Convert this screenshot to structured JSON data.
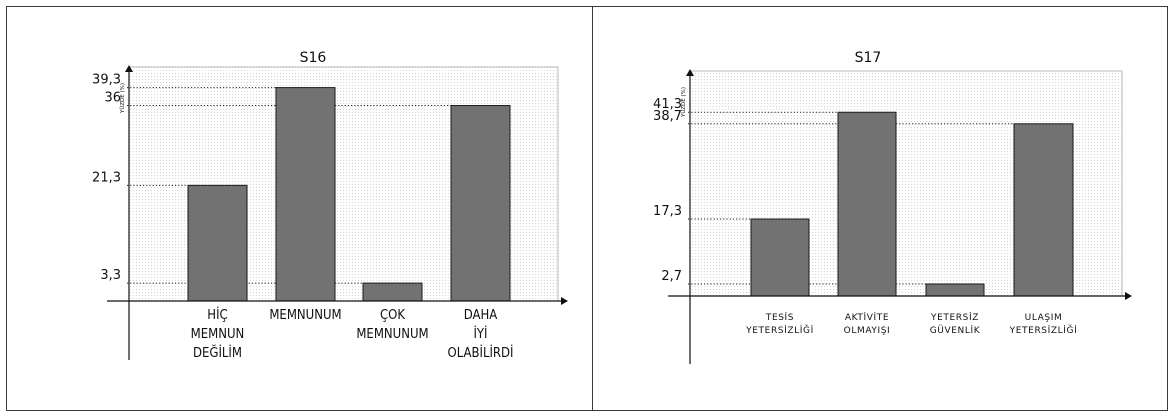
{
  "chart_data": [
    {
      "type": "bar",
      "title": "S16",
      "ylabel": "YÜZDE (%)",
      "xlabel": "",
      "categories": [
        [
          "HİÇ",
          "MEMNUN",
          "DEĞİLİM"
        ],
        [
          "MEMNUNUM"
        ],
        [
          "ÇOK",
          "MEMNUNUM"
        ],
        [
          "DAHA",
          "İYİ",
          "OLABİLİRDİ"
        ]
      ],
      "values": [
        21.3,
        39.3,
        3.3,
        36
      ],
      "value_labels": [
        "21,3",
        "39,3",
        "3,3",
        "36"
      ],
      "ylim": [
        0,
        45
      ],
      "bar_color": "#727272",
      "grid": false
    },
    {
      "type": "bar",
      "title": "S17",
      "ylabel": "YÜZDE (%)",
      "xlabel": "",
      "categories": [
        [
          "TESİS",
          "YETERSİZLİĞİ"
        ],
        [
          "AKTİVİTE",
          "OLMAYIŞI"
        ],
        [
          "YETERSİZ",
          "GÜVENLİK"
        ],
        [
          "ULAŞIM",
          "YETERSİZLİĞİ"
        ]
      ],
      "values": [
        17.3,
        41.3,
        2.7,
        38.7
      ],
      "value_labels": [
        "17,3",
        "41,3",
        "2,7",
        "38,7"
      ],
      "ylim": [
        0,
        45
      ],
      "bar_color": "#727272",
      "grid": false
    }
  ]
}
